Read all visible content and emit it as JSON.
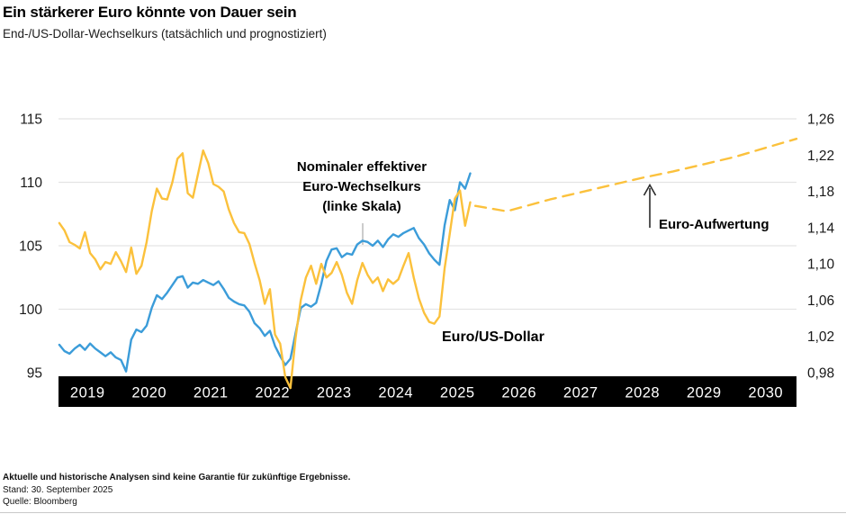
{
  "header": {
    "title": "Ein stärkerer Euro könnte von Dauer sein",
    "subtitle": "End-/US-Dollar-Wechselkurs (tatsächlich und prognostiziert)"
  },
  "annotations": {
    "left_series_label": "Nominaler effektiver\nEuro-Wechselkurs\n(linke Skala)",
    "eurusd_label": "Euro/US-Dollar",
    "appreciation_label": "Euro-Aufwertung"
  },
  "footer": {
    "disclaimer": "Aktuelle und historische Analysen sind keine Garantie für zukünftige Ergebnisse.",
    "as_of": "Stand: 30. September 2025",
    "source": "Quelle: Bloomberg"
  },
  "colors": {
    "blue": "#3B9CD9",
    "yellow": "#FBC13C",
    "band": "#000000",
    "grid": "#E4E4E4",
    "tick_text": "#1a1a1a",
    "year_text": "#ffffff"
  },
  "chart_data": {
    "type": "line",
    "title": "Ein stärkerer Euro könnte von Dauer sein",
    "subtitle": "End-/US-Dollar-Wechselkurs (tatsächlich und prognostiziert)",
    "grid": true,
    "legend_position": "inline-annotations",
    "x_axis": {
      "years": [
        2019,
        2020,
        2021,
        2022,
        2023,
        2024,
        2025,
        2026,
        2027,
        2028,
        2029,
        2030
      ]
    },
    "left_axis": {
      "ticks": [
        115,
        110,
        105,
        100,
        95
      ],
      "range": [
        95,
        115
      ]
    },
    "right_axis": {
      "ticks": [
        "1,26",
        "1,22",
        "1,18",
        "1,14",
        "1,10",
        "1,06",
        "1,02",
        "0,98"
      ],
      "range": [
        0.98,
        1.26
      ]
    },
    "series": [
      {
        "id": "nominal-eer",
        "name": "Nominaler effektiver Euro-Wechselkurs (linke Skala)",
        "axis": "left",
        "style": "solid",
        "color": "#3B9CD9",
        "t0": 2019.042,
        "dt": 0.08333,
        "values": [
          97.2,
          96.7,
          96.5,
          96.9,
          97.2,
          96.8,
          97.3,
          96.9,
          96.6,
          96.3,
          96.6,
          96.2,
          96.0,
          95.1,
          97.6,
          98.4,
          98.2,
          98.7,
          100.1,
          101.1,
          100.8,
          101.3,
          101.9,
          102.5,
          102.6,
          101.7,
          102.1,
          102.0,
          102.3,
          102.1,
          101.9,
          102.2,
          101.6,
          100.9,
          100.6,
          100.4,
          100.3,
          99.8,
          98.9,
          98.5,
          97.9,
          98.3,
          97.1,
          96.3,
          95.6,
          96.1,
          98.1,
          100.1,
          100.4,
          100.2,
          100.5,
          102.0,
          103.8,
          104.7,
          104.8,
          104.1,
          104.4,
          104.3,
          105.1,
          105.4,
          105.3,
          105.0,
          105.4,
          104.9,
          105.5,
          105.9,
          105.7,
          106.0,
          106.2,
          106.4,
          105.6,
          105.1,
          104.4,
          103.9,
          103.5,
          106.6,
          108.6,
          107.8,
          110.0,
          109.5,
          110.7
        ]
      },
      {
        "id": "eur-usd",
        "name": "Euro/US-Dollar",
        "axis": "right",
        "style": "solid",
        "color": "#FBC13C",
        "t0": 2019.042,
        "dt": 0.08333,
        "values": [
          1.145,
          1.137,
          1.124,
          1.121,
          1.117,
          1.135,
          1.112,
          1.105,
          1.094,
          1.102,
          1.1,
          1.113,
          1.103,
          1.091,
          1.118,
          1.089,
          1.098,
          1.124,
          1.158,
          1.183,
          1.172,
          1.171,
          1.19,
          1.216,
          1.222,
          1.178,
          1.173,
          1.199,
          1.225,
          1.211,
          1.188,
          1.185,
          1.18,
          1.16,
          1.145,
          1.135,
          1.134,
          1.122,
          1.101,
          1.082,
          1.056,
          1.072,
          1.022,
          1.012,
          0.975,
          0.963,
          1.018,
          1.06,
          1.085,
          1.098,
          1.078,
          1.1,
          1.085,
          1.09,
          1.102,
          1.088,
          1.068,
          1.056,
          1.082,
          1.101,
          1.088,
          1.079,
          1.085,
          1.07,
          1.083,
          1.078,
          1.083,
          1.098,
          1.112,
          1.085,
          1.062,
          1.046,
          1.036,
          1.034,
          1.042,
          1.095,
          1.133,
          1.172,
          1.181,
          1.142,
          1.168
        ]
      },
      {
        "id": "eur-usd-forecast",
        "name": "Euro/US-Dollar (prognostiziert)",
        "axis": "right",
        "style": "dashed",
        "color": "#FBC13C",
        "x": [
          2025.79,
          2026.3,
          2027.0,
          2027.5,
          2028.0,
          2028.5,
          2029.0,
          2029.5,
          2030.0,
          2030.5,
          2031.0
        ],
        "values": [
          1.164,
          1.158,
          1.171,
          1.179,
          1.187,
          1.195,
          1.202,
          1.21,
          1.218,
          1.228,
          1.238
        ]
      }
    ]
  }
}
